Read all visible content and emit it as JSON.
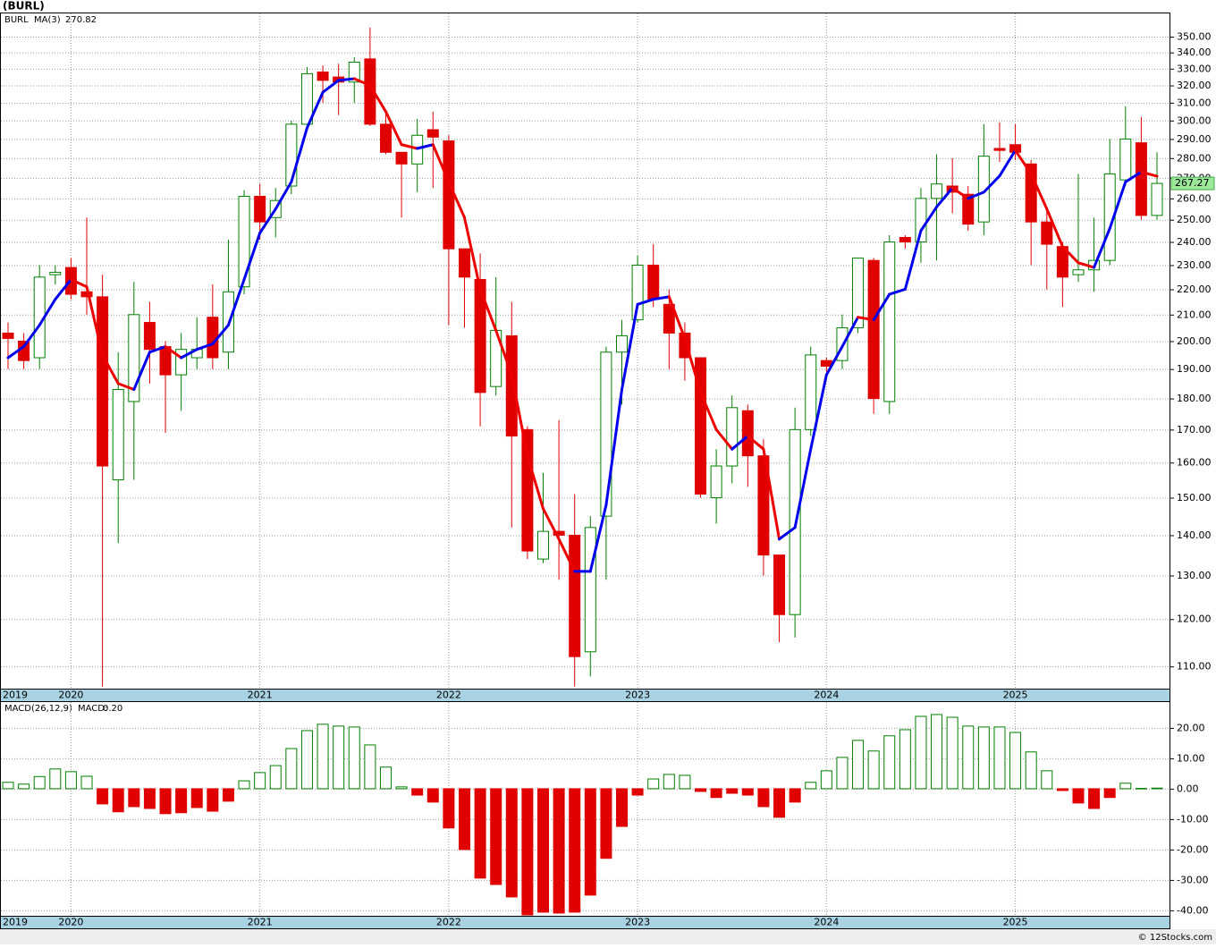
{
  "chart_data": [
    {
      "type": "candlestick",
      "title": "(BURL)",
      "symbol": "BURL",
      "log": true,
      "grid": true,
      "up_color": "#008000",
      "down_color": "#e00000",
      "ma_up_color": "#0000ee",
      "ma_down_color": "#ee0000",
      "last_box_color": "#9be89b",
      "categories": [
        "2019",
        null,
        null,
        null,
        "2020",
        null,
        null,
        null,
        null,
        null,
        null,
        null,
        null,
        null,
        null,
        null,
        "2021",
        null,
        null,
        null,
        null,
        null,
        null,
        null,
        null,
        null,
        null,
        null,
        "2022",
        null,
        null,
        null,
        null,
        null,
        null,
        null,
        null,
        null,
        null,
        null,
        "2023",
        null,
        null,
        null,
        null,
        null,
        null,
        null,
        null,
        null,
        null,
        null,
        "2024",
        null,
        null,
        null,
        null,
        null,
        null,
        null,
        null,
        null,
        null,
        null,
        "2025",
        null,
        null,
        null,
        null,
        null,
        null,
        null,
        null,
        null
      ],
      "open": [
        203,
        200,
        194,
        226,
        229,
        219,
        217,
        155,
        179,
        207,
        198,
        188,
        194,
        209,
        196,
        221,
        261,
        251,
        266,
        298,
        328,
        325,
        322,
        336,
        298,
        283,
        277,
        295,
        289,
        237,
        224,
        184,
        202,
        170,
        134,
        141,
        140,
        113,
        145,
        196,
        208,
        230,
        214,
        203,
        194,
        150,
        159,
        176,
        162,
        135,
        121,
        170,
        193,
        193,
        205,
        232,
        179,
        242,
        240,
        260,
        266,
        262,
        249,
        285,
        287,
        277,
        249,
        238,
        226,
        228,
        232,
        269,
        288,
        252
      ],
      "high": [
        207,
        203,
        230,
        230,
        233,
        251,
        226,
        196,
        223,
        215,
        200,
        203,
        209,
        222,
        241,
        264,
        267,
        265,
        300,
        331,
        332,
        333,
        337,
        356,
        305,
        283,
        301,
        305,
        292,
        237,
        235,
        225,
        215,
        171,
        157,
        173,
        151,
        145,
        198,
        208,
        234,
        239,
        220,
        207,
        194,
        164,
        181,
        178,
        167,
        135,
        177,
        198,
        194,
        210,
        233,
        233,
        243,
        243,
        265,
        282,
        280,
        266,
        298,
        299,
        298,
        279,
        256,
        240,
        272,
        251,
        290,
        308,
        302,
        283
      ],
      "low": [
        190,
        190,
        190,
        222,
        216,
        210,
        106,
        138,
        155,
        185,
        169,
        176,
        190,
        190,
        190,
        218,
        241,
        242,
        262,
        295,
        310,
        303,
        310,
        297,
        282,
        251,
        263,
        265,
        206,
        205,
        171,
        181,
        142,
        134,
        133,
        129,
        106,
        108,
        129,
        178,
        207,
        213,
        190,
        186,
        150,
        143,
        154,
        153,
        130,
        115,
        116,
        168,
        189,
        190,
        203,
        175,
        175,
        237,
        231,
        232,
        253,
        245,
        243,
        278,
        279,
        230,
        220,
        213,
        223,
        219,
        230,
        266,
        250,
        250
      ],
      "close": [
        201,
        193,
        225,
        227,
        218,
        217,
        159,
        183,
        210,
        197,
        188,
        197,
        197,
        194,
        219,
        261,
        249,
        259,
        298,
        327,
        323,
        322,
        334,
        298,
        283,
        277,
        292,
        291,
        237,
        225,
        182,
        204,
        168,
        136,
        141,
        140,
        112,
        142,
        196,
        202,
        230,
        216,
        203,
        194,
        151,
        159,
        177,
        162,
        135,
        121,
        170,
        195,
        191,
        205,
        233,
        180,
        240,
        240,
        260,
        267,
        263,
        248,
        281,
        284,
        283,
        249,
        239,
        225,
        228,
        232,
        272,
        290,
        252,
        267.27
      ],
      "ma": {
        "name": "MA(3)",
        "values": [
          194,
          198,
          206,
          216,
          224,
          221,
          195,
          185,
          183,
          196,
          198,
          194,
          197,
          199,
          206,
          224,
          244,
          255,
          268,
          296,
          316,
          323,
          324,
          320,
          305,
          287,
          285,
          287,
          268,
          251,
          220,
          204,
          188,
          162,
          147,
          139,
          131,
          131,
          148,
          183,
          214,
          216,
          217,
          201,
          182,
          170,
          164,
          168,
          164,
          139,
          142,
          164,
          188,
          198,
          209,
          208,
          218,
          220,
          245,
          256,
          265,
          260,
          263,
          271,
          284,
          272,
          255,
          238,
          231,
          229,
          246,
          268,
          273,
          270.82
        ]
      },
      "ylim": [
        105.6,
        365.9
      ],
      "yticks": [
        {
          "value": 110,
          "label": "110.00"
        },
        {
          "value": 120,
          "label": "120.00"
        },
        {
          "value": 130,
          "label": "130.00"
        },
        {
          "value": 140,
          "label": "140.00"
        },
        {
          "value": 150,
          "label": "150.00"
        },
        {
          "value": 160,
          "label": "160.00"
        },
        {
          "value": 170,
          "label": "170.00"
        },
        {
          "value": 180,
          "label": "180.00"
        },
        {
          "value": 190,
          "label": "190.00"
        },
        {
          "value": 200,
          "label": "200.00"
        },
        {
          "value": 210,
          "label": "210.00"
        },
        {
          "value": 220,
          "label": "220.00"
        },
        {
          "value": 230,
          "label": "230.00"
        },
        {
          "value": 240,
          "label": "240.00"
        },
        {
          "value": 250,
          "label": "250.00"
        },
        {
          "value": 260,
          "label": "260.00"
        },
        {
          "value": 270,
          "label": "270.00"
        },
        {
          "value": 280,
          "label": "280.00"
        },
        {
          "value": 290,
          "label": "290.00"
        },
        {
          "value": 300,
          "label": "300.00"
        },
        {
          "value": 310,
          "label": "310.00"
        },
        {
          "value": 320,
          "label": "320.00"
        },
        {
          "value": 330,
          "label": "330.00"
        },
        {
          "value": 340,
          "label": "340.00"
        },
        {
          "value": 350,
          "label": "350.00"
        }
      ]
    },
    {
      "type": "bar",
      "title": "MACD(26,12,9)",
      "legend_name": "MACD:",
      "legend_value": {
        "value": 0.2,
        "label": "0.20"
      },
      "grid": true,
      "pos_color": "#008000",
      "neg_color": "#e00000",
      "values": [
        2.1,
        1.5,
        4,
        6.5,
        5.6,
        4.1,
        -5,
        -7.6,
        -5.9,
        -6.5,
        -8.2,
        -7.9,
        -6.2,
        -7.4,
        -4.1,
        2.6,
        5.3,
        7.6,
        13.2,
        19.1,
        21.2,
        20.6,
        20.3,
        14.4,
        7.1,
        0.6,
        -2.1,
        -4.4,
        -12.9,
        -20,
        -29.4,
        -31.5,
        -35.6,
        -41.5,
        -40.6,
        -40.9,
        -40.6,
        -35,
        -22.9,
        -12.4,
        -2.1,
        3.2,
        4.7,
        4.4,
        -0.9,
        -2.9,
        -1.5,
        -2.1,
        -5.9,
        -9.4,
        -4.4,
        2.1,
        5.9,
        10.3,
        15.9,
        12.4,
        17.4,
        19.4,
        23.8,
        24.4,
        23.5,
        20.6,
        20.3,
        20.3,
        18.5,
        12.1,
        5.9,
        -0.6,
        -4.7,
        -6.5,
        -2.9,
        1.8,
        0.1,
        0.2
      ],
      "ylim": [
        -41.8,
        28.5
      ],
      "yticks": [
        {
          "value": 20,
          "label": "20.00"
        },
        {
          "value": 10,
          "label": "10.00"
        },
        {
          "value": 0,
          "label": "0.00"
        },
        {
          "value": -10,
          "label": "-10.00"
        },
        {
          "value": -20,
          "label": "-20.00"
        },
        {
          "value": -30,
          "label": "-30.00"
        },
        {
          "value": -40,
          "label": "-40.00"
        }
      ]
    }
  ],
  "watermark": "© 12Stocks.com"
}
